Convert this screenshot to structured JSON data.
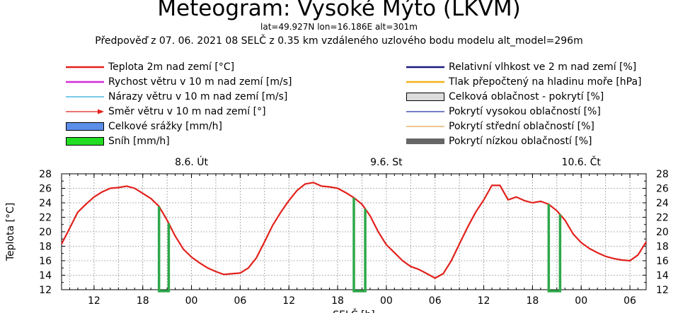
{
  "header": {
    "title": "Meteogram: Vysoké Mýto (LKVM)",
    "coords": "lat=49.927N lon=16.186E alt=301m",
    "forecast": "Předpověď z 07. 06. 2021 08 SELČ z 0.35 km vzdáleného uzlového bodu modelu alt_model=296m"
  },
  "legend": {
    "left": [
      {
        "label": "Teplota 2m nad zemí [°C]",
        "kind": "line",
        "color": "#e2211c"
      },
      {
        "label": "Rychost větru v 10 m nad zemí [m/s]",
        "kind": "line",
        "color": "#d62ad6"
      },
      {
        "label": "Nárazy větru v 10 m nad zemí [m/s]",
        "kind": "thinline",
        "color": "#2aa8e0"
      },
      {
        "label": "Směr větru v 10 m nad zemí [°]",
        "kind": "arrow",
        "color": "#e2211c"
      },
      {
        "label": "Celkové srážky [mm/h]",
        "kind": "box",
        "color": "#5b8ee8"
      },
      {
        "label": "Sníh [mm/h]",
        "kind": "box",
        "color": "#22dd22"
      }
    ],
    "right": [
      {
        "label": "Relativní vlhkost ve 2 m nad zemí [%]",
        "kind": "line",
        "color": "#1a1a80"
      },
      {
        "label": "Tlak přepočtený na hladinu moře [hPa]",
        "kind": "line",
        "color": "#f2b21a"
      },
      {
        "label": "Celková oblačnost - pokrytí [%]",
        "kind": "box",
        "color": "#dcdcdc"
      },
      {
        "label": "Pokrytí vysokou oblačností [%]",
        "kind": "thinline",
        "color": "#2233aa"
      },
      {
        "label": "Pokrytí střední oblačností [%]",
        "kind": "thinline",
        "color": "#e8a050"
      },
      {
        "label": "Pokrytí nízkou oblačností [%]",
        "kind": "darkbox",
        "color": "#666666"
      }
    ]
  },
  "chart_data": {
    "type": "line",
    "title": "Meteogram: Vysoké Mýto (LKVM)",
    "xlabel": "SELČ [h]",
    "ylabel": "Teplota [°C]",
    "ylim": [
      12,
      28
    ],
    "yticks": [
      12,
      14,
      16,
      18,
      20,
      22,
      24,
      26,
      28
    ],
    "xlim": [
      8,
      80
    ],
    "xticks": [
      {
        "h": 12,
        "label": "12"
      },
      {
        "h": 18,
        "label": "18"
      },
      {
        "h": 24,
        "label": "00"
      },
      {
        "h": 30,
        "label": "06"
      },
      {
        "h": 36,
        "label": "12"
      },
      {
        "h": 42,
        "label": "18"
      },
      {
        "h": 48,
        "label": "00"
      },
      {
        "h": 54,
        "label": "06"
      },
      {
        "h": 60,
        "label": "12"
      },
      {
        "h": 66,
        "label": "18"
      },
      {
        "h": 72,
        "label": "00"
      },
      {
        "h": 78,
        "label": "06"
      }
    ],
    "days": [
      {
        "h": 24,
        "label": "8.6. Út"
      },
      {
        "h": 48,
        "label": "9.6. St"
      },
      {
        "h": 72,
        "label": "10.6. Čt"
      }
    ],
    "grid": true,
    "series": [
      {
        "name": "Teplota 2m nad zemí [°C]",
        "color": "#e2211c",
        "x": [
          8,
          9,
          10,
          11,
          12,
          13,
          14,
          15,
          16,
          17,
          18,
          19,
          20,
          21,
          22,
          23,
          24,
          25,
          26,
          27,
          28,
          29,
          30,
          31,
          32,
          33,
          34,
          35,
          36,
          37,
          38,
          39,
          40,
          41,
          42,
          43,
          44,
          45,
          46,
          47,
          48,
          49,
          50,
          51,
          52,
          53,
          54,
          55,
          56,
          57,
          58,
          59,
          60,
          61,
          62,
          63,
          64,
          65,
          66,
          67,
          68,
          69,
          70,
          71,
          72,
          73,
          74,
          75,
          76,
          77,
          78,
          79,
          80
        ],
        "values": [
          18.3,
          20.5,
          22.7,
          23.8,
          24.8,
          25.5,
          26.0,
          26.1,
          26.3,
          26.0,
          25.3,
          24.6,
          23.5,
          21.6,
          19.4,
          17.6,
          16.5,
          15.7,
          15.0,
          14.5,
          14.1,
          14.2,
          14.3,
          15.0,
          16.4,
          18.6,
          20.9,
          22.7,
          24.3,
          25.7,
          26.6,
          26.8,
          26.3,
          26.2,
          26.0,
          25.4,
          24.7,
          23.8,
          22.2,
          20.0,
          18.2,
          17.1,
          16.0,
          15.2,
          14.8,
          14.2,
          13.6,
          14.2,
          16.0,
          18.3,
          20.6,
          22.7,
          24.4,
          26.4,
          26.4,
          24.4,
          24.8,
          24.3,
          24.0,
          24.2,
          23.8,
          22.9,
          21.6,
          19.7,
          18.5,
          17.7,
          17.1,
          16.6,
          16.3,
          16.1,
          16.0,
          16.8,
          18.6
        ]
      }
    ],
    "snow_markers": [
      {
        "x_start": 20.0,
        "x_end": 21.2
      },
      {
        "x_start": 44.0,
        "x_end": 45.4
      },
      {
        "x_start": 68.0,
        "x_end": 69.4
      }
    ]
  }
}
